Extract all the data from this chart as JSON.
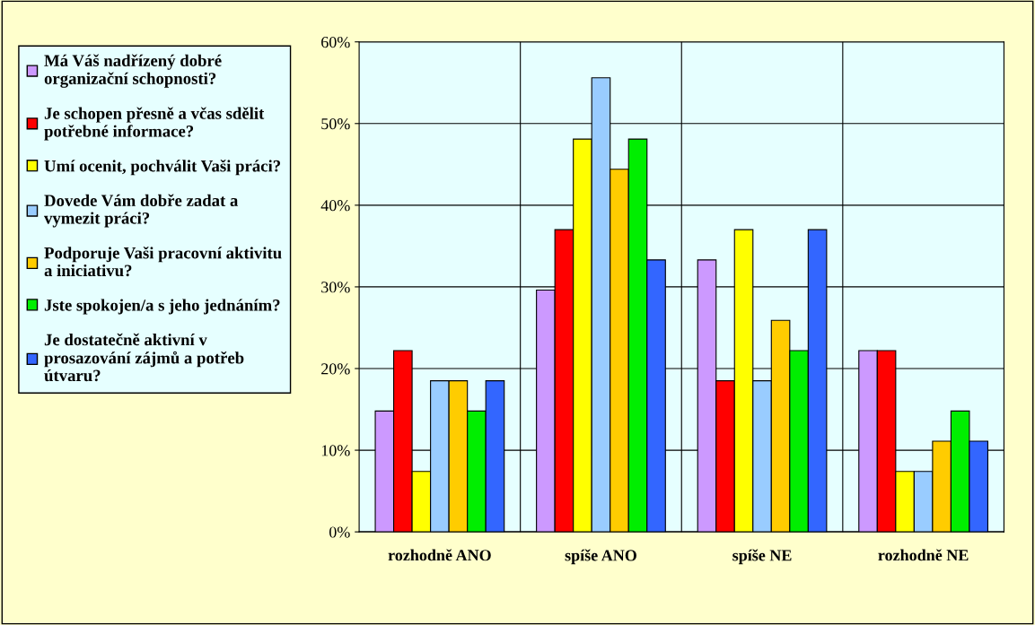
{
  "chart_data": {
    "type": "bar",
    "categories": [
      "rozhodně ANO",
      "spíše ANO",
      "spíše NE",
      "rozhodně NE"
    ],
    "series": [
      {
        "name": "Má Váš nadřízený dobré organizační schopnosti?",
        "color": "#cc99ff",
        "values": [
          14.8,
          29.6,
          33.3,
          22.2
        ]
      },
      {
        "name": "Je schopen přesně a včas sdělit potřebné informace?",
        "color": "#ff0000",
        "values": [
          22.2,
          37.0,
          18.5,
          22.2
        ]
      },
      {
        "name": "Umí ocenit, pochválit Vaši práci?",
        "color": "#ffff00",
        "values": [
          7.4,
          48.1,
          37.0,
          7.4
        ]
      },
      {
        "name": "Dovede Vám dobře zadat a vymezit práci?",
        "color": "#99ccff",
        "values": [
          18.5,
          55.6,
          18.5,
          7.4
        ]
      },
      {
        "name": "Podporuje Vaši pracovní aktivitu a iniciativu?",
        "color": "#ffcc00",
        "values": [
          18.5,
          44.4,
          25.9,
          11.1
        ]
      },
      {
        "name": "Jste spokojen/a s jeho jednáním?",
        "color": "#00ee00",
        "values": [
          14.8,
          48.1,
          22.2,
          14.8
        ]
      },
      {
        "name": "Je dostatečně aktivní v prosazování zájmů a potřeb útvaru?",
        "color": "#3366ff",
        "values": [
          18.5,
          33.3,
          37.0,
          11.1
        ]
      }
    ],
    "ylim": [
      0,
      60
    ],
    "yticks": [
      {
        "value": 0,
        "label": "0%"
      },
      {
        "value": 10,
        "label": "10%"
      },
      {
        "value": 20,
        "label": "20%"
      },
      {
        "value": 30,
        "label": "30%"
      },
      {
        "value": 40,
        "label": "40%"
      },
      {
        "value": 50,
        "label": "50%"
      },
      {
        "value": 60,
        "label": "60%"
      }
    ],
    "grid": true,
    "legend": "left"
  }
}
